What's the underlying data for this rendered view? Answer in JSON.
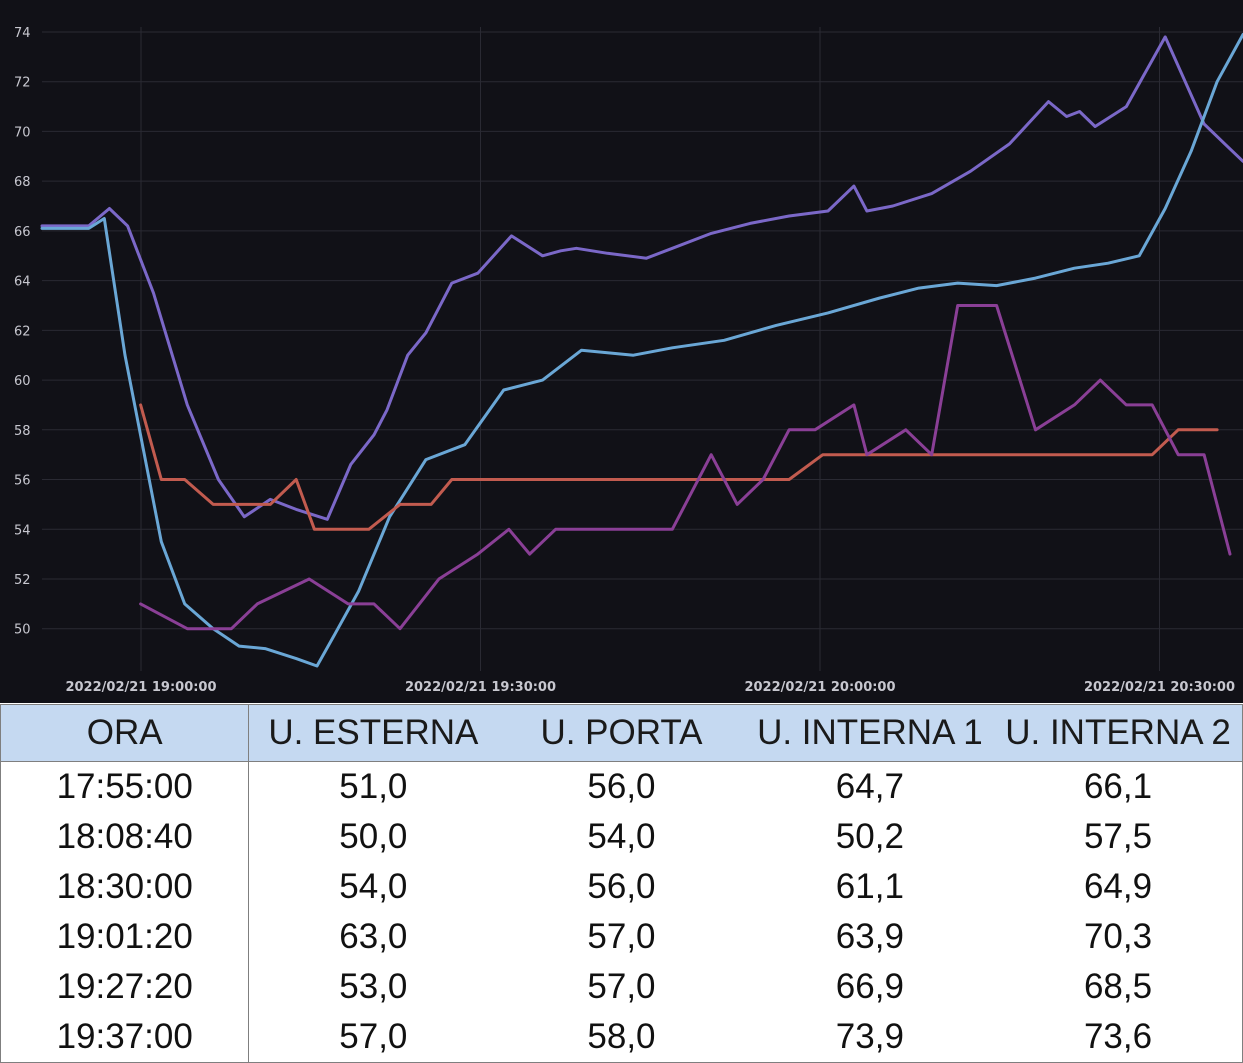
{
  "chart_data": {
    "type": "line",
    "ylim": [
      48.3,
      74.2
    ],
    "yticks": [
      "50",
      "52",
      "54",
      "56",
      "58",
      "60",
      "62",
      "64",
      "66",
      "68",
      "70",
      "72",
      "74"
    ],
    "xticks": [
      "2022/02/21 19:00:00",
      "2022/02/21 19:30:00",
      "2022/02/21 20:00:00",
      "2022/02/21 20:30:00"
    ],
    "xlim": [
      -8.8,
      37.5
    ],
    "series": [
      {
        "color": "#7b68c8",
        "x": [
          -8.8,
          -7.0,
          -6.2,
          -5.5,
          -4.5,
          -3.2,
          -2.0,
          -1.0,
          0.0,
          1.0,
          2.2,
          3.1,
          4.0,
          4.5,
          5.3,
          6.0,
          7.0,
          8.0,
          9.3,
          10.5,
          11.2,
          11.8,
          13.0,
          14.5,
          15.5,
          17.0,
          18.5,
          20.0,
          21.5,
          22.5,
          23.0,
          24.0,
          25.5,
          27.0,
          28.5,
          30.0,
          30.7,
          31.2,
          31.8,
          33.0,
          34.5,
          36.0,
          36.8,
          37.5
        ],
        "values": [
          66.2,
          66.2,
          66.9,
          66.2,
          63.5,
          59.0,
          56.0,
          54.5,
          55.2,
          54.8,
          54.4,
          56.6,
          57.8,
          58.8,
          61.0,
          61.9,
          63.9,
          64.3,
          65.8,
          65.0,
          65.2,
          65.3,
          65.1,
          64.9,
          65.3,
          65.9,
          66.3,
          66.6,
          66.8,
          67.8,
          66.8,
          67.0,
          67.5,
          68.4,
          69.5,
          71.2,
          70.6,
          70.8,
          70.2,
          71.0,
          73.8,
          70.3,
          69.5,
          68.8
        ]
      },
      {
        "color": "#6aa7d6",
        "x": [
          -8.8,
          -7.0,
          -6.4,
          -5.6,
          -4.2,
          -3.3,
          -2.2,
          -1.2,
          -0.2,
          1.0,
          1.8,
          2.5,
          3.4,
          4.6,
          6.0,
          7.5,
          9.0,
          10.5,
          12.0,
          14.0,
          15.5,
          17.5,
          19.5,
          21.5,
          23.5,
          25.0,
          26.5,
          28.0,
          29.5,
          31.0,
          32.3,
          33.5,
          34.5,
          35.5,
          36.5,
          37.5
        ],
        "values": [
          66.1,
          66.1,
          66.5,
          61.0,
          53.5,
          51.0,
          50.0,
          49.3,
          49.2,
          48.8,
          48.5,
          49.8,
          51.5,
          54.5,
          56.8,
          57.4,
          59.6,
          60.0,
          61.2,
          61.0,
          61.3,
          61.6,
          62.2,
          62.7,
          63.3,
          63.7,
          63.9,
          63.8,
          64.1,
          64.5,
          64.7,
          65.0,
          66.9,
          69.2,
          72.0,
          73.9
        ]
      },
      {
        "color": "#c25b4f",
        "x": [
          -5.0,
          -4.2,
          -3.3,
          -2.2,
          0.0,
          1.0,
          1.7,
          3.8,
          5.0,
          6.2,
          7.0,
          14.0,
          15.0,
          20.0,
          21.3,
          31.0,
          32.0,
          34.0,
          35.0,
          36.5
        ],
        "values": [
          59.0,
          56.0,
          56.0,
          55.0,
          55.0,
          56.0,
          54.0,
          54.0,
          55.0,
          55.0,
          56.0,
          56.0,
          56.0,
          56.0,
          57.0,
          57.0,
          57.0,
          57.0,
          58.0,
          58.0
        ]
      },
      {
        "color": "#8a3f96",
        "x": [
          -5.0,
          -3.2,
          -1.5,
          -0.5,
          1.5,
          3.0,
          4.0,
          5.0,
          6.5,
          8.0,
          9.2,
          10.0,
          11.0,
          12.0,
          12.5,
          15.5,
          17.0,
          18.0,
          19.0,
          20.0,
          21.0,
          22.5,
          23.0,
          24.5,
          25.5,
          26.5,
          28.0,
          29.5,
          31.0,
          32.0,
          33.0,
          34.0,
          35.0,
          36.0,
          37.0
        ],
        "values": [
          51.0,
          50.0,
          50.0,
          51.0,
          52.0,
          51.0,
          51.0,
          50.0,
          52.0,
          53.0,
          54.0,
          53.0,
          54.0,
          54.0,
          54.0,
          54.0,
          57.0,
          55.0,
          56.0,
          58.0,
          58.0,
          59.0,
          57.0,
          58.0,
          57.0,
          63.0,
          63.0,
          58.0,
          59.0,
          60.0,
          59.0,
          59.0,
          57.0,
          57.0,
          53.0
        ]
      }
    ]
  },
  "table": {
    "headers": [
      "ORA",
      "U. ESTERNA",
      "U. PORTA",
      "U. INTERNA 1",
      "U. INTERNA 2"
    ],
    "rows": [
      [
        "17:55:00",
        "51,0",
        "56,0",
        "64,7",
        "66,1"
      ],
      [
        "18:08:40",
        "50,0",
        "54,0",
        "50,2",
        "57,5"
      ],
      [
        "18:30:00",
        "54,0",
        "56,0",
        "61,1",
        "64,9"
      ],
      [
        "19:01:20",
        "63,0",
        "57,0",
        "63,9",
        "70,3"
      ],
      [
        "19:27:20",
        "53,0",
        "57,0",
        "66,9",
        "68,5"
      ],
      [
        "19:37:00",
        "57,0",
        "58,0",
        "73,9",
        "73,6"
      ]
    ]
  }
}
